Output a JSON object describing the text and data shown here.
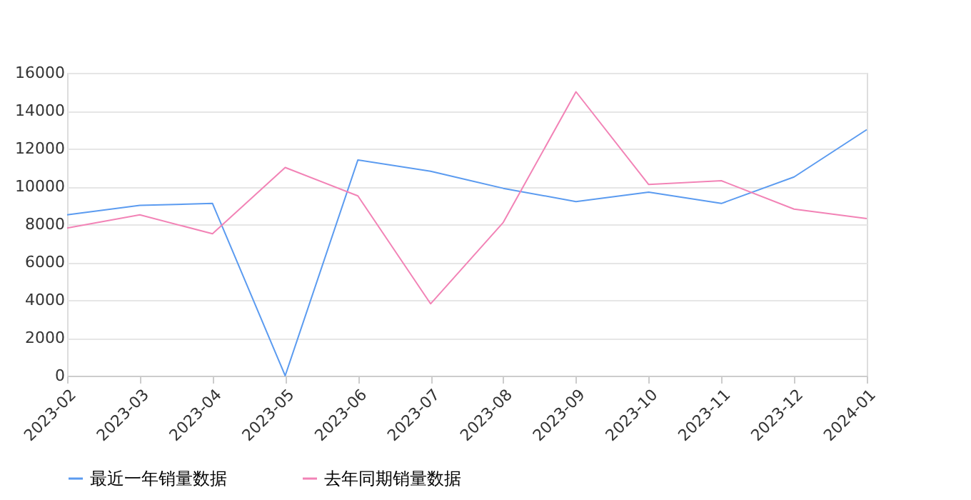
{
  "chart_data": {
    "type": "line",
    "categories": [
      "2023-02",
      "2023-03",
      "2023-04",
      "2023-05",
      "2023-06",
      "2023-07",
      "2023-08",
      "2023-09",
      "2023-10",
      "2023-11",
      "2023-12",
      "2024-01"
    ],
    "series": [
      {
        "name": "最近一年销量数据",
        "color": "#5b9bf0",
        "values": [
          8500,
          9000,
          9100,
          0,
          11400,
          10800,
          9900,
          9200,
          9700,
          9100,
          10500,
          13000
        ]
      },
      {
        "name": "去年同期销量数据",
        "color": "#f283b6",
        "values": [
          7800,
          8500,
          7500,
          11000,
          9500,
          3800,
          8100,
          15000,
          10100,
          10300,
          8800,
          8300
        ]
      }
    ],
    "ylim": [
      0,
      16000
    ],
    "yticks": [
      0,
      2000,
      4000,
      6000,
      8000,
      10000,
      12000,
      14000,
      16000
    ],
    "grid": "y",
    "legend": "bottom",
    "marker": "none",
    "line_style": "solid"
  }
}
